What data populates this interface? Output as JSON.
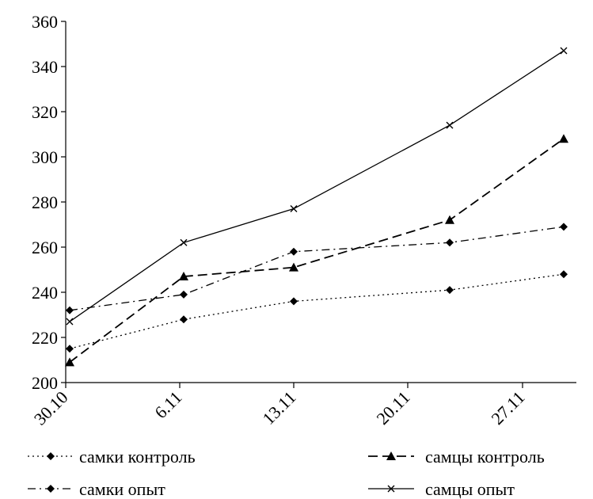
{
  "chart_data": {
    "type": "line",
    "title": "",
    "xlabel": "",
    "ylabel": "",
    "ylim": [
      200,
      360
    ],
    "y_ticks": [
      "200",
      "220",
      "240",
      "260",
      "280",
      "300",
      "320",
      "340",
      "360"
    ],
    "x_ticks": [
      "30.10",
      "6.11",
      "13.11",
      "20.11",
      "27.11"
    ],
    "x": [
      "30.10",
      "6.11",
      "13.11",
      "23.11",
      "30.11"
    ],
    "grid": false,
    "legend_placement": "bottom",
    "series": [
      {
        "name": "самки контроль",
        "values": [
          215,
          228,
          236,
          241,
          248
        ],
        "color": "#000000",
        "line_style": "dotted",
        "marker": "diamond"
      },
      {
        "name": "самцы контроль",
        "values": [
          209,
          247,
          251,
          272,
          308
        ],
        "color": "#000000",
        "line_style": "dashed",
        "marker": "triangle"
      },
      {
        "name": "самки опыт",
        "values": [
          232,
          239,
          258,
          262,
          269
        ],
        "color": "#000000",
        "line_style": "dash-dot",
        "marker": "diamond"
      },
      {
        "name": "самцы опыт",
        "values": [
          227,
          262,
          277,
          314,
          347
        ],
        "color": "#000000",
        "line_style": "solid",
        "marker": "x"
      }
    ]
  }
}
